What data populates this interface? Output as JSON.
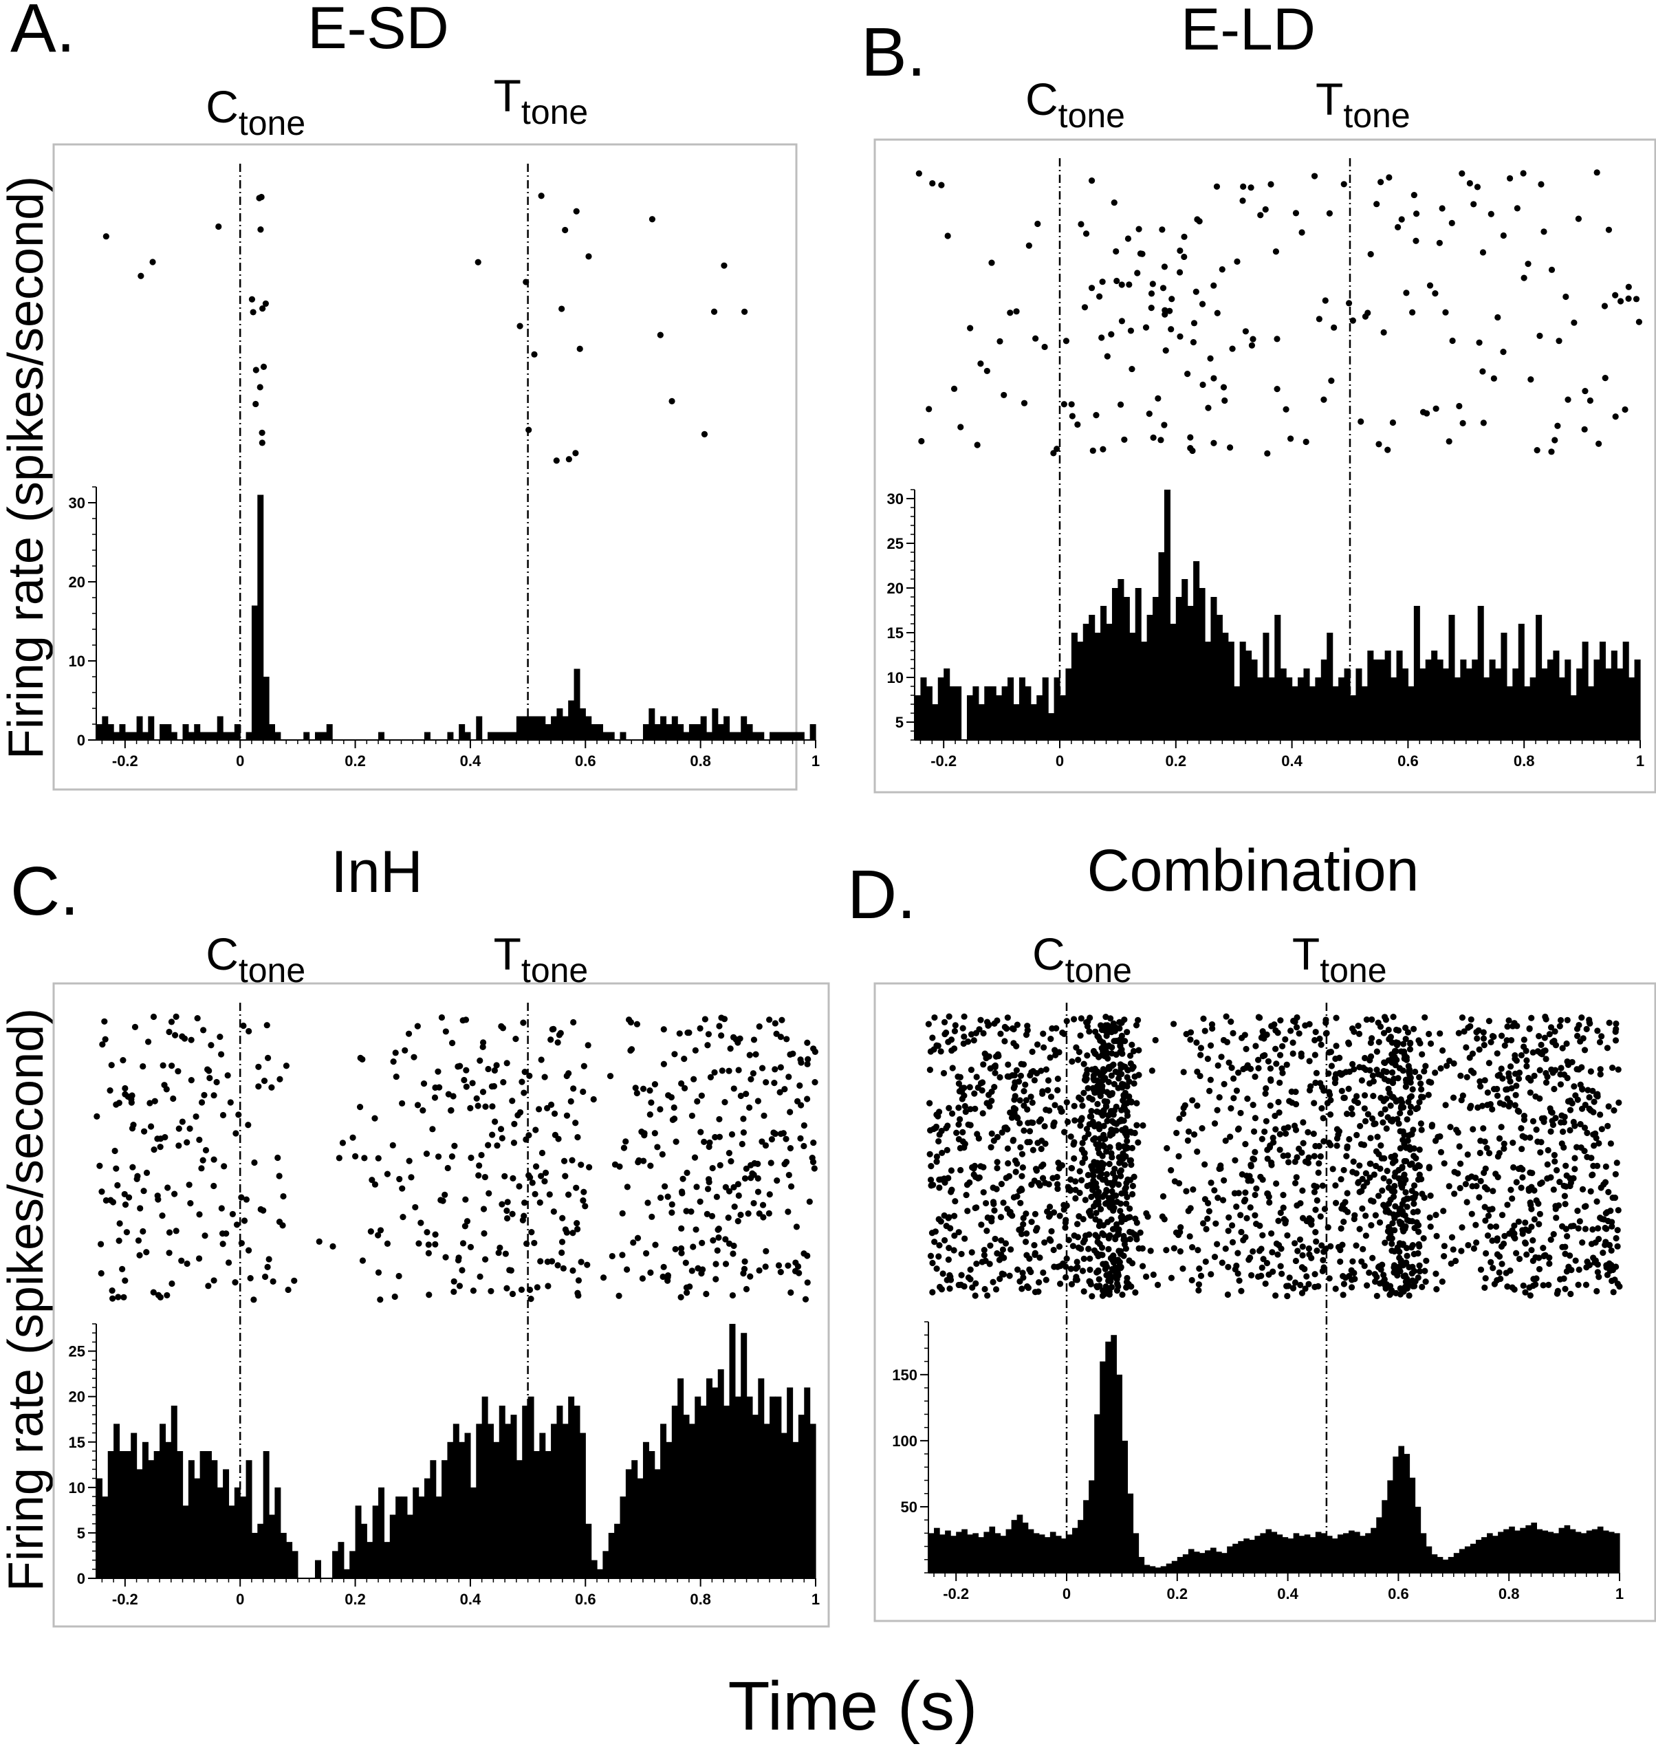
{
  "figure": {
    "y_axis_label": "Firing rate (spikes/second)",
    "x_axis_label": "Time (s)"
  },
  "chart_data": [
    {
      "type": "raster+histogram",
      "panel_letter": "A.",
      "title": "E-SD",
      "markers": [
        {
          "main": "C",
          "sub": "tone",
          "x": 0
        },
        {
          "main": "T",
          "sub": "tone",
          "x": 0.5
        }
      ],
      "xlim": [
        -0.25,
        1.0
      ],
      "xticks": [
        -0.2,
        0,
        0.2,
        0.4,
        0.6,
        0.8,
        1
      ],
      "ylim": [
        0,
        32
      ],
      "yticks": [
        0,
        10,
        20,
        30
      ],
      "hist_values": [
        2,
        3,
        2,
        1,
        2,
        1,
        1,
        3,
        1,
        3,
        0,
        2,
        2,
        1,
        0,
        2,
        1,
        2,
        1,
        1,
        1,
        3,
        1,
        1,
        2,
        0,
        1,
        17,
        31,
        8,
        2,
        1,
        0,
        0,
        0,
        0,
        1,
        0,
        1,
        1,
        2,
        0,
        0,
        0,
        0,
        0,
        0,
        0,
        0,
        1,
        0,
        0,
        0,
        0,
        0,
        0,
        0,
        1,
        0,
        0,
        0,
        1,
        0,
        2,
        1,
        0,
        3,
        0,
        1,
        1,
        1,
        1,
        1,
        3,
        3,
        3,
        3,
        3,
        2,
        3,
        4,
        3,
        5,
        9,
        4,
        3,
        2,
        2,
        1,
        1,
        0,
        1,
        0,
        0,
        0,
        2,
        4,
        2,
        3,
        2,
        3,
        2,
        1,
        2,
        2,
        3,
        1,
        4,
        2,
        3,
        1,
        1,
        3,
        2,
        1,
        1,
        0,
        1,
        1,
        1,
        1,
        1,
        1,
        0,
        2
      ]
    },
    {
      "type": "raster+histogram",
      "panel_letter": "B.",
      "title": "E-LD",
      "markers": [
        {
          "main": "C",
          "sub": "tone",
          "x": 0
        },
        {
          "main": "T",
          "sub": "tone",
          "x": 0.5
        }
      ],
      "xlim": [
        -0.25,
        1.0
      ],
      "xticks": [
        -0.2,
        0,
        0.2,
        0.4,
        0.6,
        0.8,
        1
      ],
      "ylim": [
        3,
        31
      ],
      "yticks": [
        5,
        10,
        15,
        20,
        25,
        30
      ],
      "hist_values": [
        8,
        10,
        9,
        7,
        10,
        11,
        9,
        9,
        3,
        8,
        9,
        7,
        9,
        9,
        8,
        9,
        10,
        7,
        10,
        9,
        7,
        8,
        10,
        6,
        10,
        8,
        11,
        15,
        14,
        16,
        17,
        15,
        18,
        16,
        20,
        21,
        19,
        15,
        20,
        14,
        17,
        19,
        24,
        31,
        16,
        19,
        21,
        18,
        23,
        20,
        14,
        19,
        17,
        15,
        14,
        9,
        14,
        13,
        12,
        10,
        15,
        10,
        17,
        11,
        10,
        9,
        10,
        11,
        9,
        10,
        12,
        15,
        9,
        10,
        11,
        8,
        11,
        9,
        13,
        12,
        12,
        13,
        10,
        13,
        11,
        9,
        18,
        11,
        12,
        13,
        12,
        11,
        17,
        10,
        12,
        11,
        12,
        18,
        10,
        12,
        11,
        15,
        9,
        11,
        16,
        9,
        10,
        17,
        11,
        12,
        13,
        10,
        12,
        8,
        11,
        14,
        9,
        12,
        14,
        11,
        13,
        11,
        14,
        10,
        12
      ]
    },
    {
      "type": "raster+histogram",
      "panel_letter": "C.",
      "title": "InH",
      "markers": [
        {
          "main": "C",
          "sub": "tone",
          "x": 0
        },
        {
          "main": "T",
          "sub": "tone",
          "x": 0.5
        }
      ],
      "xlim": [
        -0.25,
        1.0
      ],
      "xticks": [
        -0.2,
        0,
        0.2,
        0.4,
        0.6,
        0.8,
        1
      ],
      "ylim": [
        0,
        28
      ],
      "yticks": [
        0,
        5,
        10,
        15,
        20,
        25
      ],
      "hist_values": [
        11,
        9,
        14,
        17,
        14,
        14,
        16,
        12,
        15,
        13,
        14,
        17,
        15,
        19,
        14,
        8,
        13,
        11,
        14,
        14,
        13,
        10,
        12,
        8,
        10,
        9,
        13,
        5,
        6,
        14,
        7,
        10,
        5,
        4,
        3,
        0,
        0,
        0,
        2,
        0,
        0,
        3,
        4,
        1,
        3,
        8,
        6,
        4,
        8,
        10,
        4,
        7,
        9,
        9,
        7,
        10,
        9,
        11,
        13,
        9,
        13,
        15,
        17,
        15,
        16,
        10,
        17,
        20,
        17,
        15,
        19,
        17,
        18,
        13,
        19,
        20,
        14,
        16,
        14,
        17,
        19,
        17,
        20,
        19,
        16,
        6,
        2,
        1,
        3,
        5,
        6,
        9,
        12,
        13,
        11,
        15,
        14,
        12,
        17,
        15,
        19,
        22,
        18,
        17,
        20,
        19,
        22,
        21,
        23,
        19,
        28,
        20,
        27,
        20,
        18,
        22,
        17,
        20,
        20,
        16,
        21,
        15,
        18,
        21,
        17
      ]
    },
    {
      "type": "raster+histogram",
      "panel_letter": "D.",
      "title": "Combination",
      "markers": [
        {
          "main": "C",
          "sub": "tone",
          "x": 0
        },
        {
          "main": "T",
          "sub": "tone",
          "x": 0.47
        }
      ],
      "xlim": [
        -0.25,
        1.0
      ],
      "xticks": [
        -0.2,
        0,
        0.2,
        0.4,
        0.6,
        0.8,
        1
      ],
      "ylim": [
        0,
        190
      ],
      "yticks": [
        50,
        100,
        150
      ],
      "hist_values": [
        30,
        34,
        29,
        32,
        28,
        31,
        33,
        29,
        30,
        27,
        31,
        35,
        30,
        28,
        33,
        40,
        44,
        38,
        33,
        30,
        29,
        27,
        31,
        28,
        26,
        29,
        34,
        40,
        55,
        70,
        120,
        160,
        175,
        180,
        150,
        100,
        60,
        30,
        12,
        6,
        5,
        4,
        5,
        7,
        9,
        12,
        14,
        18,
        16,
        15,
        17,
        19,
        16,
        15,
        20,
        22,
        24,
        26,
        25,
        28,
        30,
        33,
        31,
        29,
        27,
        26,
        30,
        28,
        29,
        27,
        31,
        30,
        28,
        26,
        29,
        30,
        32,
        31,
        28,
        30,
        34,
        42,
        55,
        70,
        88,
        96,
        90,
        72,
        50,
        30,
        20,
        14,
        12,
        10,
        12,
        15,
        18,
        20,
        22,
        25,
        27,
        30,
        28,
        31,
        33,
        35,
        32,
        34,
        36,
        38,
        33,
        32,
        31,
        30,
        34,
        36,
        33,
        31,
        30,
        32,
        33,
        35,
        32,
        31,
        30
      ]
    }
  ]
}
